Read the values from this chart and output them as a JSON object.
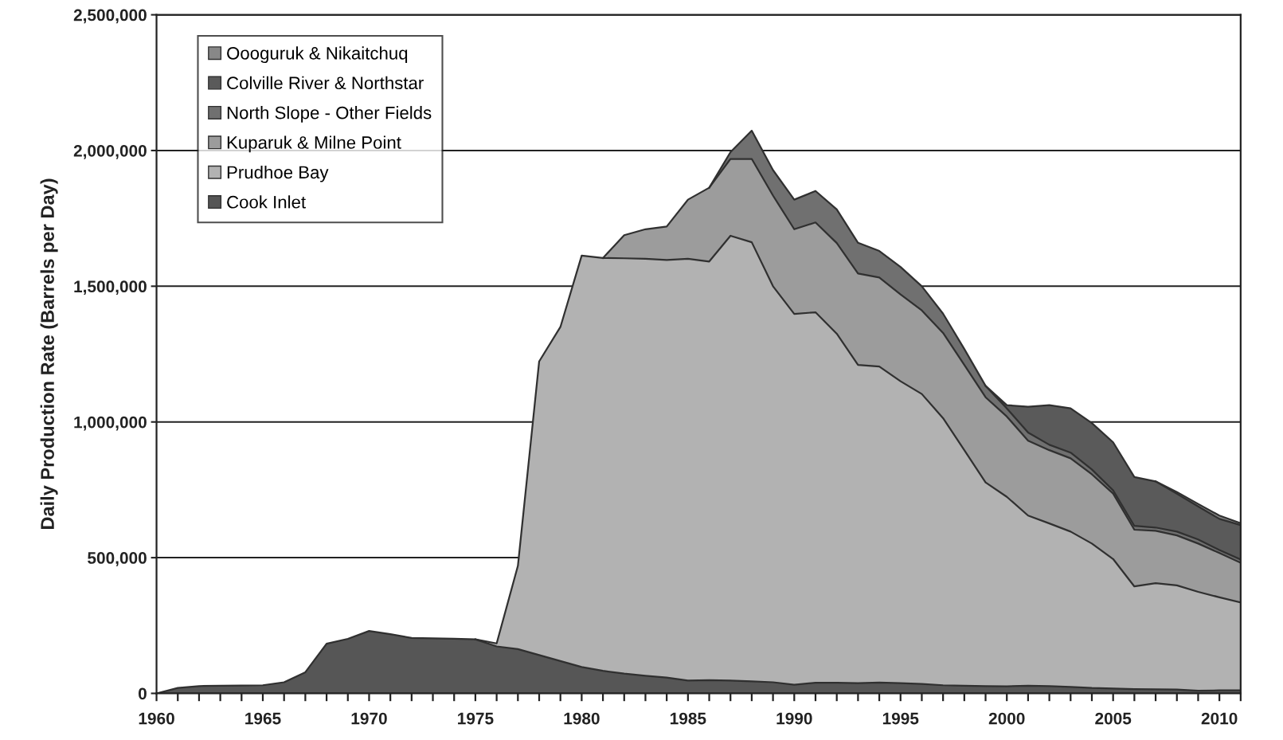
{
  "chart_data": {
    "type": "area",
    "stacked": true,
    "ylabel": "Daily Production Rate (Barrels per Day)",
    "x": [
      1960,
      1961,
      1962,
      1963,
      1964,
      1965,
      1966,
      1967,
      1968,
      1969,
      1970,
      1971,
      1972,
      1973,
      1974,
      1975,
      1976,
      1977,
      1978,
      1979,
      1980,
      1981,
      1982,
      1983,
      1984,
      1985,
      1986,
      1987,
      1988,
      1989,
      1990,
      1991,
      1992,
      1993,
      1994,
      1995,
      1996,
      1997,
      1998,
      1999,
      2000,
      2001,
      2002,
      2003,
      2004,
      2005,
      2006,
      2007,
      2008,
      2009,
      2010,
      2011
    ],
    "series": [
      {
        "name": "Cook Inlet",
        "color": "#565656",
        "values": [
          0,
          20000,
          27000,
          28000,
          29000,
          30000,
          41000,
          78000,
          183000,
          201000,
          230000,
          218000,
          204000,
          203000,
          201000,
          199000,
          173000,
          163000,
          141000,
          119000,
          97000,
          83000,
          73000,
          65000,
          58000,
          47000,
          49000,
          47000,
          44000,
          41000,
          32000,
          39000,
          39000,
          38000,
          40000,
          38000,
          35000,
          30000,
          28000,
          27000,
          26000,
          28000,
          27000,
          24000,
          20000,
          18000,
          16000,
          15000,
          14000,
          10000,
          11000,
          11000
        ]
      },
      {
        "name": "Prudhoe Bay",
        "color": "#b2b2b2",
        "values": [
          null,
          null,
          null,
          null,
          null,
          null,
          null,
          null,
          null,
          null,
          null,
          null,
          null,
          null,
          null,
          0,
          11000,
          307000,
          1082000,
          1231000,
          1516000,
          1521000,
          1530000,
          1536000,
          1539000,
          1554000,
          1542000,
          1639000,
          1618000,
          1459000,
          1366000,
          1365000,
          1286000,
          1172000,
          1164000,
          1112000,
          1068000,
          984000,
          868000,
          750000,
          698000,
          627000,
          599000,
          572000,
          532000,
          477000,
          378000,
          391000,
          384000,
          364000,
          343000,
          324000
        ]
      },
      {
        "name": "Kuparuk & Milne Point",
        "color": "#9c9c9c",
        "values": [
          null,
          null,
          null,
          null,
          null,
          null,
          null,
          null,
          null,
          null,
          null,
          null,
          null,
          null,
          null,
          null,
          null,
          null,
          null,
          null,
          null,
          0,
          85000,
          109000,
          123000,
          218000,
          272000,
          283000,
          307000,
          334000,
          312000,
          331000,
          334000,
          337000,
          328000,
          320000,
          308000,
          314000,
          314000,
          314000,
          296000,
          276000,
          270000,
          270000,
          255000,
          241000,
          209000,
          193000,
          184000,
          178000,
          163000,
          146000
        ]
      },
      {
        "name": "North Slope - Other Fields",
        "color": "#707070",
        "values": [
          null,
          null,
          null,
          null,
          null,
          null,
          null,
          null,
          null,
          null,
          null,
          null,
          null,
          null,
          null,
          null,
          null,
          null,
          null,
          null,
          null,
          null,
          null,
          null,
          null,
          null,
          0,
          25000,
          104000,
          94000,
          109000,
          116000,
          124000,
          113000,
          98000,
          101000,
          89000,
          71000,
          59000,
          42000,
          30000,
          30000,
          20000,
          21000,
          18000,
          12000,
          14000,
          12000,
          14000,
          15000,
          11000,
          12000
        ]
      },
      {
        "name": "Colville River & Northstar",
        "color": "#5a5a5a",
        "values": [
          null,
          null,
          null,
          null,
          null,
          null,
          null,
          null,
          null,
          null,
          null,
          null,
          null,
          null,
          null,
          null,
          null,
          null,
          null,
          null,
          null,
          null,
          null,
          null,
          null,
          null,
          null,
          null,
          null,
          null,
          null,
          null,
          null,
          null,
          null,
          null,
          null,
          null,
          null,
          0,
          12000,
          95000,
          146000,
          163000,
          171000,
          177000,
          180000,
          170000,
          140000,
          122000,
          115000,
          127000
        ]
      },
      {
        "name": "Oooguruk & Nikaitchuq",
        "color": "#888888",
        "values": [
          null,
          null,
          null,
          null,
          null,
          null,
          null,
          null,
          null,
          null,
          null,
          null,
          null,
          null,
          null,
          null,
          null,
          null,
          null,
          null,
          null,
          null,
          null,
          null,
          null,
          null,
          null,
          null,
          null,
          null,
          null,
          null,
          null,
          null,
          null,
          null,
          null,
          null,
          null,
          null,
          null,
          null,
          null,
          null,
          null,
          null,
          null,
          0,
          6000,
          9000,
          12000,
          7000
        ]
      }
    ],
    "xlim": [
      1960,
      2011
    ],
    "xticks": [
      1960,
      {
        "value": 1961,
        "label": null
      },
      {
        "value": 1962,
        "label": null
      },
      {
        "value": 1963,
        "label": null
      },
      {
        "value": 1964,
        "label": null
      },
      1965,
      {
        "value": 1966,
        "label": null
      },
      {
        "value": 1967,
        "label": null
      },
      {
        "value": 1968,
        "label": null
      },
      {
        "value": 1969,
        "label": null
      },
      1970,
      {
        "value": 1971,
        "label": null
      },
      {
        "value": 1972,
        "label": null
      },
      {
        "value": 1973,
        "label": null
      },
      {
        "value": 1974,
        "label": null
      },
      1975,
      {
        "value": 1976,
        "label": null
      },
      {
        "value": 1977,
        "label": null
      },
      {
        "value": 1978,
        "label": null
      },
      {
        "value": 1979,
        "label": null
      },
      1980,
      {
        "value": 1981,
        "label": null
      },
      {
        "value": 1982,
        "label": null
      },
      {
        "value": 1983,
        "label": null
      },
      {
        "value": 1984,
        "label": null
      },
      1985,
      {
        "value": 1986,
        "label": null
      },
      {
        "value": 1987,
        "label": null
      },
      {
        "value": 1988,
        "label": null
      },
      {
        "value": 1989,
        "label": null
      },
      1990,
      {
        "value": 1991,
        "label": null
      },
      {
        "value": 1992,
        "label": null
      },
      {
        "value": 1993,
        "label": null
      },
      {
        "value": 1994,
        "label": null
      },
      1995,
      {
        "value": 1996,
        "label": null
      },
      {
        "value": 1997,
        "label": null
      },
      {
        "value": 1998,
        "label": null
      },
      {
        "value": 1999,
        "label": null
      },
      2000,
      {
        "value": 2001,
        "label": null
      },
      {
        "value": 2002,
        "label": null
      },
      {
        "value": 2003,
        "label": null
      },
      {
        "value": 2004,
        "label": null
      },
      2005,
      {
        "value": 2006,
        "label": null
      },
      {
        "value": 2007,
        "label": null
      },
      {
        "value": 2008,
        "label": null
      },
      {
        "value": 2009,
        "label": null
      },
      2010,
      {
        "value": 2011,
        "label": null
      }
    ],
    "ylim": [
      0,
      2500000
    ],
    "yticks": [
      {
        "value": 0,
        "label": "0"
      },
      {
        "value": 500000,
        "label": "500,000"
      },
      {
        "value": 1000000,
        "label": "1,000,000"
      },
      {
        "value": 1500000,
        "label": "1,500,000"
      },
      {
        "value": 2000000,
        "label": "2,000,000"
      },
      {
        "value": 2500000,
        "label": "2,500,000"
      }
    ],
    "grid": "y",
    "legend": "top left"
  }
}
